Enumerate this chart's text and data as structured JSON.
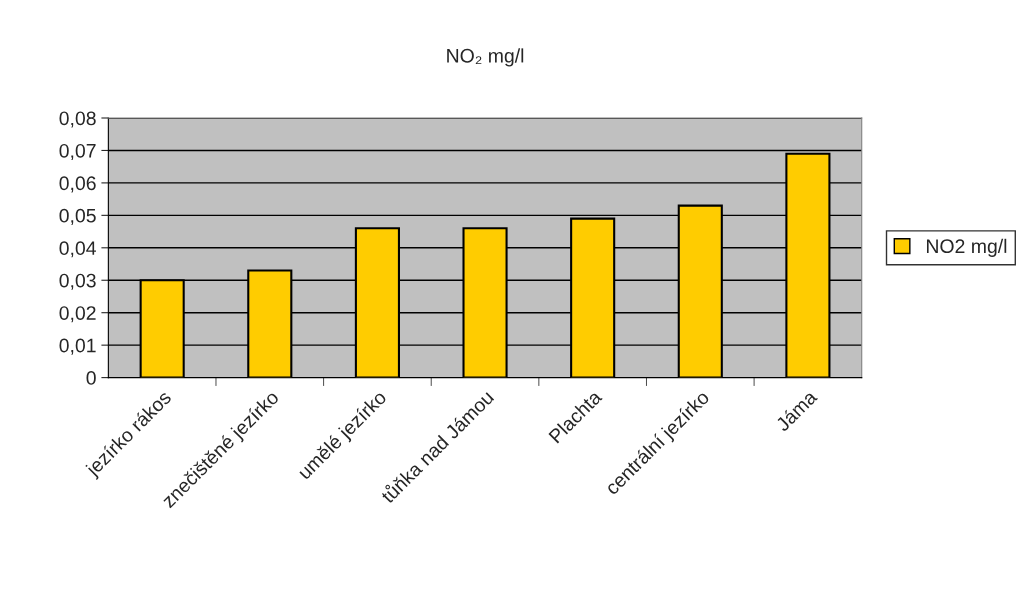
{
  "chart_data": {
    "type": "bar",
    "title": "NO₂ mg/l",
    "categories": [
      "jezírko rákos",
      "znečištěné jezírko",
      "umělé jezírko",
      "tůňka nad Jámou",
      "Plachta",
      "centrální jezírko",
      "Jáma"
    ],
    "series": [
      {
        "name": "NO2 mg/l",
        "color": "#ffcc00",
        "values": [
          0.03,
          0.033,
          0.046,
          0.046,
          0.049,
          0.053,
          0.069
        ]
      }
    ],
    "ylim": [
      0,
      0.08
    ],
    "yticks": [
      {
        "value": 0,
        "label": "0"
      },
      {
        "value": 0.01,
        "label": "0,01"
      },
      {
        "value": 0.02,
        "label": "0,02"
      },
      {
        "value": 0.03,
        "label": "0,03"
      },
      {
        "value": 0.04,
        "label": "0,04"
      },
      {
        "value": 0.05,
        "label": "0,05"
      },
      {
        "value": 0.06,
        "label": "0,06"
      },
      {
        "value": 0.07,
        "label": "0,07"
      },
      {
        "value": 0.08,
        "label": "0,08"
      }
    ],
    "grid": "y",
    "legend": "right"
  }
}
